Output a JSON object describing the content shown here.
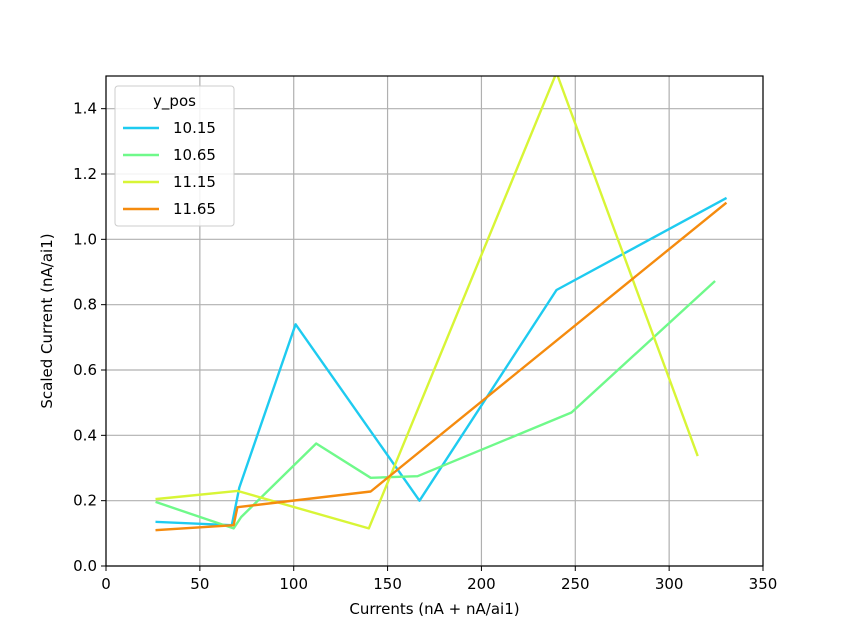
{
  "chart_data": {
    "type": "line",
    "title": "",
    "xlabel": "Currents (nA + nA/ai1)",
    "ylabel": "Scaled Current (nA/ai1)",
    "xlim": [
      0,
      350
    ],
    "ylim": [
      0,
      1.5
    ],
    "xticks": [
      0,
      50,
      100,
      150,
      200,
      250,
      300,
      350
    ],
    "yticks": [
      0.0,
      0.2,
      0.4,
      0.6,
      0.8,
      1.0,
      1.2,
      1.4
    ],
    "xtick_labels": [
      "0",
      "50",
      "100",
      "150",
      "200",
      "250",
      "300",
      "350"
    ],
    "ytick_labels": [
      "0.0",
      "0.2",
      "0.4",
      "0.6",
      "0.8",
      "1.0",
      "1.2",
      "1.4"
    ],
    "grid": true,
    "legend": {
      "title": "y_pos",
      "placement": "top-left"
    },
    "series": [
      {
        "name": "10.15",
        "color": "#1ecbf0",
        "x": [
          27,
          67,
          71,
          101,
          167,
          240,
          330
        ],
        "y": [
          0.135,
          0.125,
          0.24,
          0.74,
          0.2,
          0.845,
          1.125
        ]
      },
      {
        "name": "10.65",
        "color": "#6ff98a",
        "x": [
          27,
          68,
          72,
          112,
          141,
          166,
          248,
          324
        ],
        "y": [
          0.195,
          0.115,
          0.15,
          0.375,
          0.27,
          0.275,
          0.47,
          0.87
        ]
      },
      {
        "name": "11.15",
        "color": "#d8f536",
        "x": [
          27,
          70,
          140,
          240,
          315
        ],
        "y": [
          0.205,
          0.23,
          0.115,
          1.51,
          0.34
        ]
      },
      {
        "name": "11.65",
        "color": "#f58b0e",
        "x": [
          27,
          68,
          70,
          141,
          330
        ],
        "y": [
          0.11,
          0.125,
          0.18,
          0.228,
          1.11
        ]
      }
    ]
  }
}
